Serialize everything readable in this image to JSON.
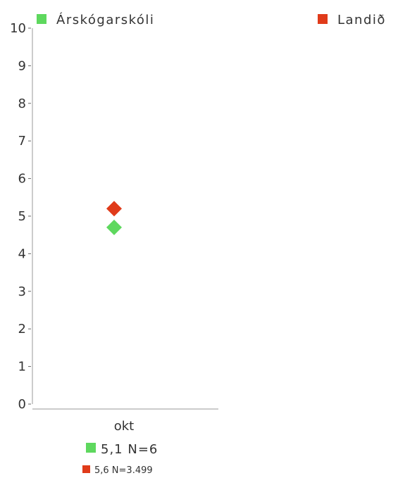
{
  "chart_data": {
    "type": "scatter",
    "categories": [
      "okt"
    ],
    "ylim": [
      0,
      10
    ],
    "yticks": [
      0,
      1,
      2,
      3,
      4,
      5,
      6,
      7,
      8,
      9,
      10
    ],
    "legend_position": "top",
    "series": [
      {
        "name": "Árskógarskóli",
        "color": "#5ed85e",
        "marker": "diamond",
        "values": [
          4.7
        ]
      },
      {
        "name": "Landið",
        "color": "#e03b1a",
        "marker": "diamond",
        "values": [
          5.2
        ]
      }
    ],
    "summaries": [
      {
        "text": "5,1 N=6",
        "color": "#5ed85e"
      },
      {
        "text": "5,6 N=3.499",
        "color": "#e03b1a"
      }
    ]
  }
}
